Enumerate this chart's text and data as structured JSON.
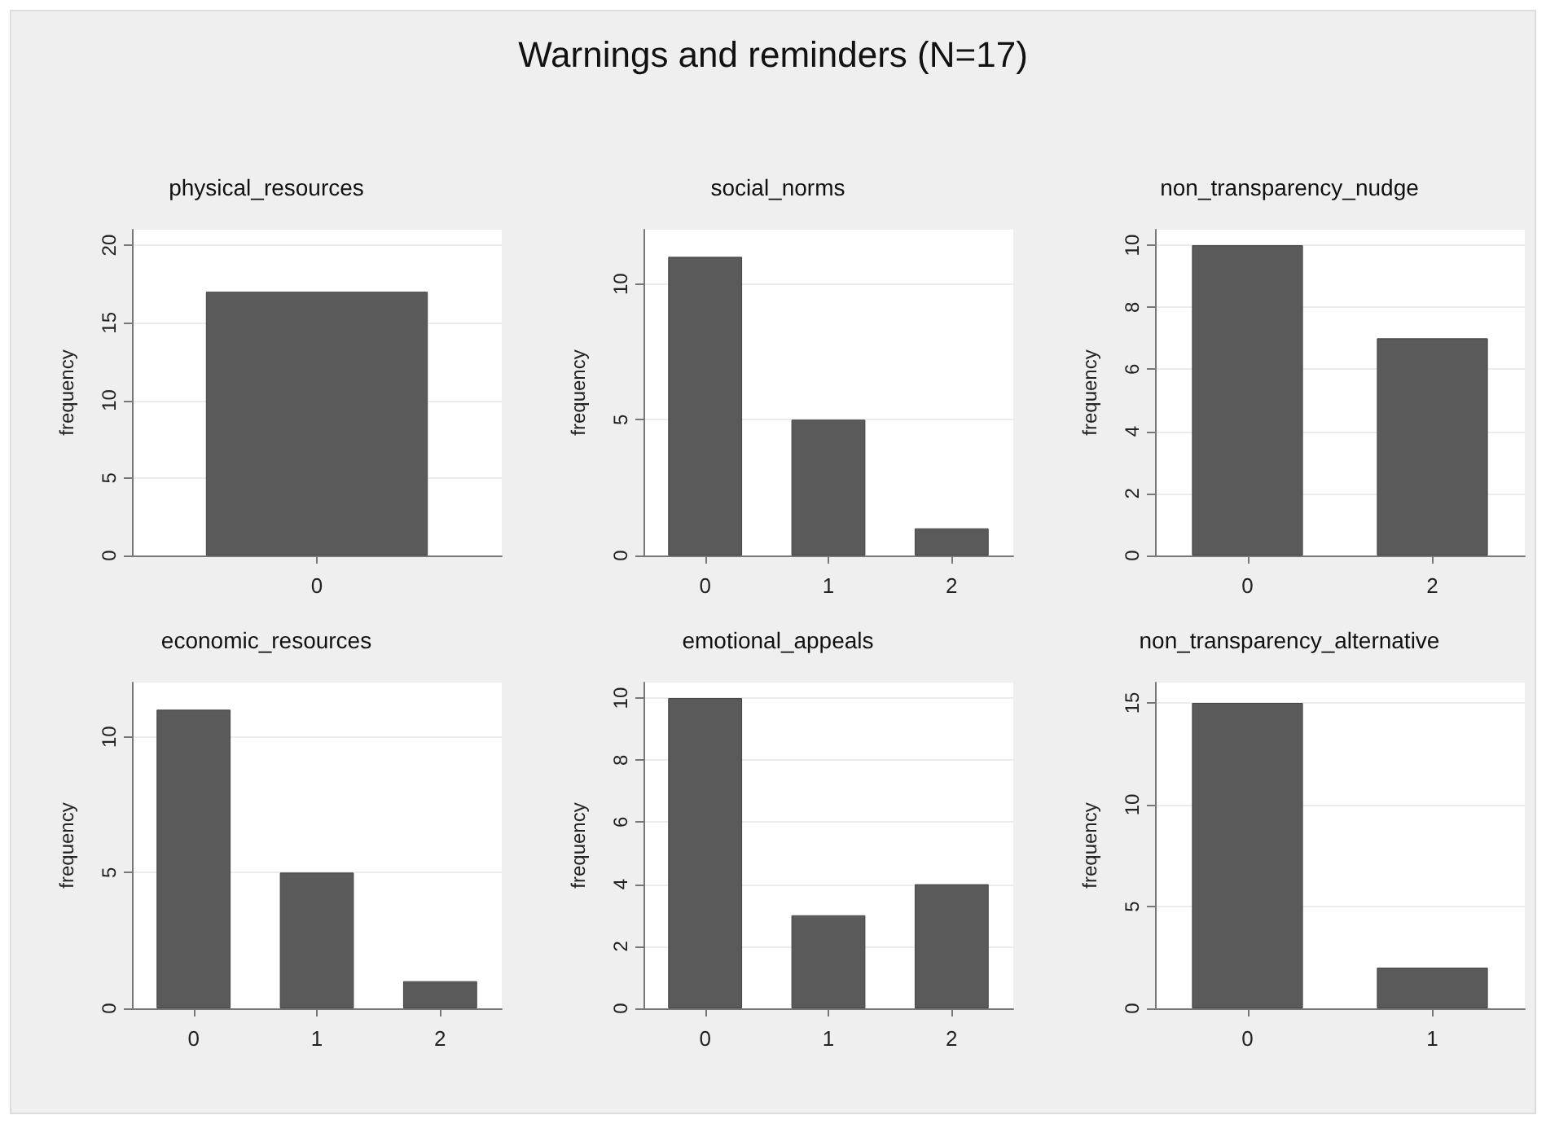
{
  "chart_data": [
    {
      "type": "other",
      "title": "Warnings and reminders (N=17)"
    },
    {
      "type": "bar",
      "title": "physical_resources",
      "ylabel": "frequency",
      "categories": [
        "0"
      ],
      "values": [
        17
      ],
      "color": "#5a5a5a",
      "ylim": [
        0,
        21
      ],
      "yticks": [
        0,
        5,
        10,
        15,
        20
      ],
      "grid": "y"
    },
    {
      "type": "bar",
      "title": "social_norms",
      "ylabel": "frequency",
      "categories": [
        "0",
        "1",
        "2"
      ],
      "values": [
        11,
        5,
        1
      ],
      "color": "#5a5a5a",
      "ylim": [
        0,
        12
      ],
      "yticks": [
        0,
        5,
        10
      ],
      "grid": "y"
    },
    {
      "type": "bar",
      "title": "non_transparency_nudge",
      "ylabel": "frequency",
      "categories": [
        "0",
        "2"
      ],
      "values": [
        10,
        7
      ],
      "color": "#5a5a5a",
      "ylim": [
        0,
        10.5
      ],
      "yticks": [
        0,
        2,
        4,
        6,
        8,
        10
      ],
      "grid": "y"
    },
    {
      "type": "bar",
      "title": "economic_resources",
      "ylabel": "frequency",
      "categories": [
        "0",
        "1",
        "2"
      ],
      "values": [
        11,
        5,
        1
      ],
      "color": "#5a5a5a",
      "ylim": [
        0,
        12
      ],
      "yticks": [
        0,
        5,
        10
      ],
      "grid": "y"
    },
    {
      "type": "bar",
      "title": "emotional_appeals",
      "ylabel": "frequency",
      "categories": [
        "0",
        "1",
        "2"
      ],
      "values": [
        10,
        3,
        4
      ],
      "color": "#5a5a5a",
      "ylim": [
        0,
        10.5
      ],
      "yticks": [
        0,
        2,
        4,
        6,
        8,
        10
      ],
      "grid": "y"
    },
    {
      "type": "bar",
      "title": "non_transparency_alternative",
      "ylabel": "frequency",
      "categories": [
        "0",
        "1"
      ],
      "values": [
        15,
        2
      ],
      "color": "#5a5a5a",
      "ylim": [
        0,
        16
      ],
      "yticks": [
        0,
        5,
        10,
        15
      ],
      "grid": "y"
    }
  ]
}
